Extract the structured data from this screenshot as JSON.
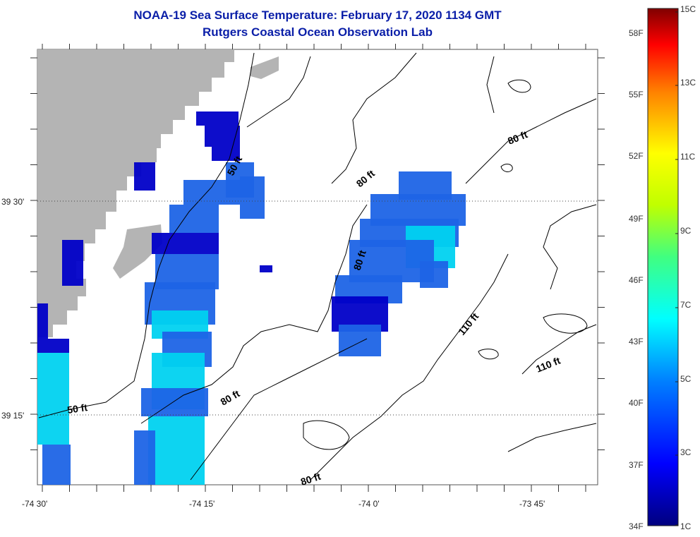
{
  "title": {
    "line1": "NOAA-19 Sea Surface Temperature:  February 17, 2020 1134 GMT",
    "line2": "Rutgers Coastal Ocean Observation Lab"
  },
  "axes": {
    "lon_labels": [
      "-74 30'",
      "-74 15'",
      "-74 0'",
      "-73 45'"
    ],
    "lat_labels": [
      "39 30'",
      "39 15'"
    ]
  },
  "contour_labels": [
    {
      "text": "50 ft",
      "id": "contour-50ft-north"
    },
    {
      "text": "50 ft",
      "id": "contour-50ft-south"
    },
    {
      "text": "80 ft",
      "id": "contour-80ft-ne"
    },
    {
      "text": "80 ft",
      "id": "contour-80ft-mid"
    },
    {
      "text": "80 ft",
      "id": "contour-80ft-center"
    },
    {
      "text": "80 ft",
      "id": "contour-80ft-sw"
    },
    {
      "text": "80 ft",
      "id": "contour-80ft-bottom"
    },
    {
      "text": "110 ft",
      "id": "contour-110ft-center"
    },
    {
      "text": "110 ft",
      "id": "contour-110ft-east"
    }
  ],
  "colorbar": {
    "fahrenheit_labels": [
      "58F",
      "55F",
      "52F",
      "49F",
      "46F",
      "43F",
      "40F",
      "37F",
      "34F"
    ],
    "celsius_labels": [
      "15C",
      "13C",
      "11C",
      "9C",
      "7C",
      "5C",
      "3C",
      "1C"
    ],
    "range_c": [
      1,
      15
    ]
  },
  "colors": {
    "land": "#b4b4b4",
    "title": "#0a1ea8",
    "sst_cold": "#0000c8",
    "sst_mid": "#1e64e6",
    "sst_warm": "#00d2f0"
  }
}
